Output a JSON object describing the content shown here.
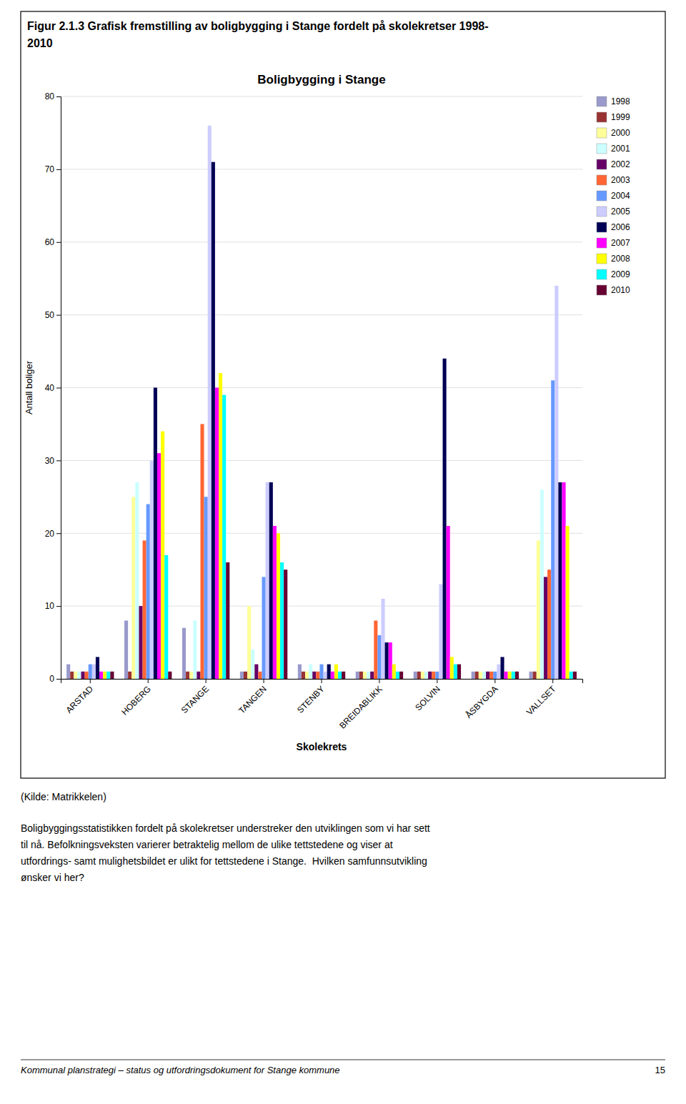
{
  "figure_title": [
    "Figur 2.1.3 Grafisk fremstilling av boligbygging i Stange fordelt på skolekretser 1998-",
    "2010"
  ],
  "source": "(Kilde: Matrikkelen)",
  "body_text": [
    "Boligbyggingsstatistikken fordelt på skolekretser understreker den utviklingen som vi har sett",
    "til nå. Befolkningsveksten varierer betraktelig mellom de ulike tettstedene og viser at",
    "utfordrings- samt mulighetsbildet er ulikt for tettstedene i Stange.  Hvilken samfunnsutvikling",
    "ønsker vi her?"
  ],
  "footer_left": "Kommunal planstrategi – status og utfordringsdokument for Stange kommune",
  "footer_right": "15",
  "chart_data": {
    "type": "bar",
    "title": "Boligbygging i Stange",
    "xlabel": "Skolekrets",
    "ylabel": "Antall boliger",
    "categories": [
      "ARSTAD",
      "HOBERG",
      "STANGE",
      "TANGEN",
      "STENBY",
      "BREIDABLIKK",
      "SOLVIN",
      "ÅSBYGDA",
      "VALLSET"
    ],
    "series": [
      {
        "name": "1998",
        "color": "#9999cc",
        "values": [
          2,
          8,
          7,
          1,
          2,
          1,
          1,
          1,
          1
        ]
      },
      {
        "name": "1999",
        "color": "#993333",
        "values": [
          1,
          1,
          1,
          1,
          1,
          1,
          1,
          1,
          1
        ]
      },
      {
        "name": "2000",
        "color": "#ffff99",
        "values": [
          1,
          25,
          1,
          10,
          1,
          1,
          1,
          1,
          19
        ]
      },
      {
        "name": "2001",
        "color": "#ccffff",
        "values": [
          1,
          27,
          8,
          4,
          2,
          1,
          1,
          1,
          26
        ]
      },
      {
        "name": "2002",
        "color": "#660066",
        "values": [
          1,
          10,
          1,
          2,
          1,
          1,
          1,
          1,
          14
        ]
      },
      {
        "name": "2003",
        "color": "#ff6633",
        "values": [
          1,
          19,
          35,
          1,
          1,
          8,
          1,
          1,
          15
        ]
      },
      {
        "name": "2004",
        "color": "#6699ff",
        "values": [
          2,
          24,
          25,
          14,
          2,
          6,
          1,
          1,
          41
        ]
      },
      {
        "name": "2005",
        "color": "#ccccff",
        "values": [
          2,
          30,
          76,
          27,
          1,
          11,
          13,
          2,
          54
        ]
      },
      {
        "name": "2006",
        "color": "#000055",
        "values": [
          3,
          40,
          71,
          27,
          2,
          5,
          44,
          3,
          27
        ]
      },
      {
        "name": "2007",
        "color": "#ff00ff",
        "values": [
          1,
          31,
          40,
          21,
          1,
          5,
          21,
          1,
          27
        ]
      },
      {
        "name": "2008",
        "color": "#ffff00",
        "values": [
          1,
          34,
          42,
          20,
          2,
          2,
          3,
          1,
          21
        ]
      },
      {
        "name": "2009",
        "color": "#00ffff",
        "values": [
          1,
          17,
          39,
          16,
          1,
          1,
          2,
          1,
          1
        ]
      },
      {
        "name": "2010",
        "color": "#660033",
        "values": [
          1,
          1,
          16,
          15,
          1,
          1,
          2,
          1,
          1
        ]
      }
    ],
    "ylim": [
      0,
      80
    ],
    "yticks": [
      0,
      10,
      20,
      30,
      40,
      50,
      60,
      70,
      80
    ],
    "grid": true,
    "legend": "right"
  }
}
